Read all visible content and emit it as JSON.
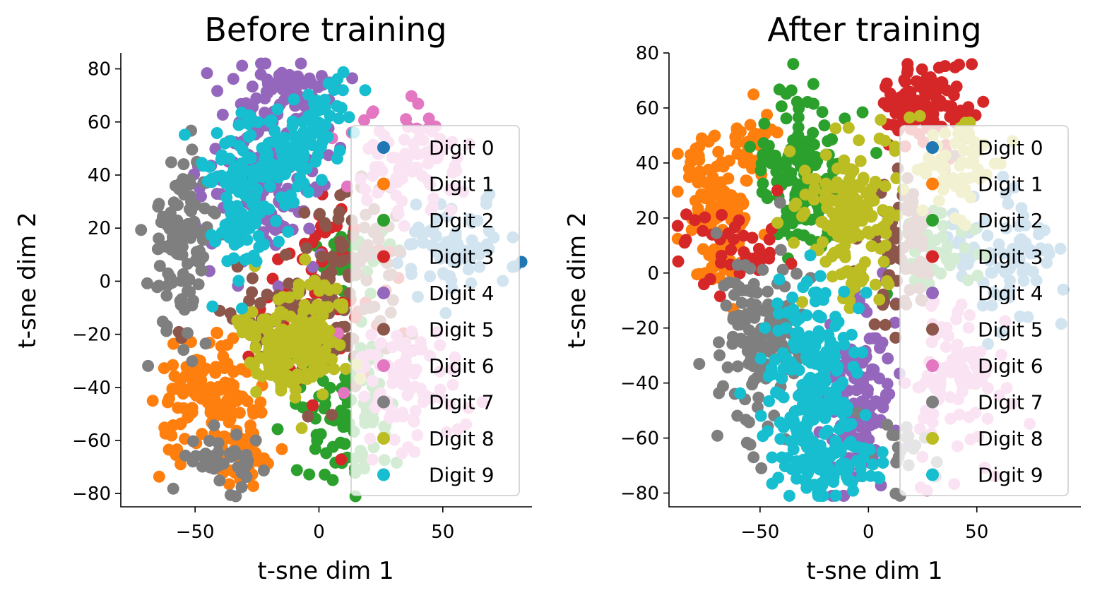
{
  "chart_data": [
    {
      "type": "scatter",
      "title": "Before training",
      "xlabel": "t-sne dim 1",
      "ylabel": "t-sne dim 2",
      "xlim": [
        -80,
        86
      ],
      "ylim": [
        -85,
        86
      ],
      "xticks": [
        {
          "v": -50,
          "label": "−50"
        },
        {
          "v": 0,
          "label": "0"
        },
        {
          "v": 50,
          "label": "50"
        }
      ],
      "yticks": [
        {
          "v": -80,
          "label": "−80"
        },
        {
          "v": -60,
          "label": "−60"
        },
        {
          "v": -40,
          "label": "−40"
        },
        {
          "v": -20,
          "label": "−20"
        },
        {
          "v": 0,
          "label": "0"
        },
        {
          "v": 20,
          "label": "20"
        },
        {
          "v": 40,
          "label": "40"
        },
        {
          "v": 60,
          "label": "60"
        },
        {
          "v": 80,
          "label": "80"
        }
      ],
      "legend_location": "right",
      "clusters": [
        {
          "series": 7,
          "cx": -55,
          "cy": 15,
          "sx": 7,
          "sy": 17,
          "n": 110
        },
        {
          "series": 7,
          "cx": -38,
          "cy": -68,
          "sx": 8,
          "sy": 5,
          "n": 40
        },
        {
          "series": 1,
          "cx": -45,
          "cy": -45,
          "sx": 10,
          "sy": 10,
          "n": 130
        },
        {
          "series": 1,
          "cx": -28,
          "cy": -65,
          "sx": 7,
          "sy": 6,
          "n": 40
        },
        {
          "series": 4,
          "cx": -22,
          "cy": 45,
          "sx": 12,
          "sy": 18,
          "n": 170
        },
        {
          "series": 4,
          "cx": -10,
          "cy": 72,
          "sx": 10,
          "sy": 5,
          "n": 40
        },
        {
          "series": 5,
          "cx": -5,
          "cy": -15,
          "sx": 20,
          "sy": 12,
          "n": 110
        },
        {
          "series": 5,
          "cx": 15,
          "cy": 20,
          "sx": 10,
          "sy": 12,
          "n": 50
        },
        {
          "series": 3,
          "cx": 5,
          "cy": 0,
          "sx": 15,
          "sy": 20,
          "n": 60
        },
        {
          "series": 2,
          "cx": 12,
          "cy": -50,
          "sx": 9,
          "sy": 13,
          "n": 100
        },
        {
          "series": 2,
          "cx": 15,
          "cy": 10,
          "sx": 7,
          "sy": 7,
          "n": 40
        },
        {
          "series": 6,
          "cx": 38,
          "cy": 45,
          "sx": 12,
          "sy": 10,
          "n": 90
        },
        {
          "series": 0,
          "cx": 55,
          "cy": 12,
          "sx": 13,
          "sy": 8,
          "n": 80
        },
        {
          "series": 6,
          "cx": 35,
          "cy": -40,
          "sx": 12,
          "sy": 12,
          "n": 90
        },
        {
          "series": 8,
          "cx": -10,
          "cy": -20,
          "sx": 11,
          "sy": 11,
          "n": 180
        },
        {
          "series": 9,
          "cx": -30,
          "cy": 30,
          "sx": 9,
          "sy": 15,
          "n": 110
        },
        {
          "series": 9,
          "cx": -12,
          "cy": 48,
          "sx": 10,
          "sy": 9,
          "n": 80
        },
        {
          "series": 9,
          "cx": 3,
          "cy": 62,
          "sx": 5,
          "sy": 7,
          "n": 30
        }
      ]
    },
    {
      "type": "scatter",
      "title": "After training",
      "xlabel": "t-sne dim 1",
      "ylabel": "t-sne dim 2",
      "xlim": [
        -92,
        98
      ],
      "ylim": [
        -85,
        80
      ],
      "xticks": [
        {
          "v": -50,
          "label": "−50"
        },
        {
          "v": 0,
          "label": "0"
        },
        {
          "v": 50,
          "label": "50"
        }
      ],
      "yticks": [
        {
          "v": -80,
          "label": "−80"
        },
        {
          "v": -60,
          "label": "−60"
        },
        {
          "v": -40,
          "label": "−40"
        },
        {
          "v": -20,
          "label": "−20"
        },
        {
          "v": 0,
          "label": "0"
        },
        {
          "v": 20,
          "label": "20"
        },
        {
          "v": 40,
          "label": "40"
        },
        {
          "v": 60,
          "label": "60"
        },
        {
          "v": 80,
          "label": "80"
        }
      ],
      "legend_location": "right",
      "clusters": [
        {
          "series": 1,
          "cx": -70,
          "cy": 25,
          "sx": 8,
          "sy": 15,
          "n": 130
        },
        {
          "series": 1,
          "cx": -55,
          "cy": 50,
          "sx": 6,
          "sy": 6,
          "n": 30
        },
        {
          "series": 3,
          "cx": -62,
          "cy": 10,
          "sx": 14,
          "sy": 8,
          "n": 40
        },
        {
          "series": 2,
          "cx": -30,
          "cy": 35,
          "sx": 10,
          "sy": 15,
          "n": 140
        },
        {
          "series": 7,
          "cx": -50,
          "cy": -25,
          "sx": 10,
          "sy": 16,
          "n": 140
        },
        {
          "series": 7,
          "cx": 15,
          "cy": -65,
          "sx": 8,
          "sy": 8,
          "n": 20
        },
        {
          "series": 8,
          "cx": -8,
          "cy": 20,
          "sx": 10,
          "sy": 14,
          "n": 170
        },
        {
          "series": 3,
          "cx": 25,
          "cy": 60,
          "sx": 10,
          "sy": 8,
          "n": 110
        },
        {
          "series": 5,
          "cx": 12,
          "cy": 10,
          "sx": 10,
          "sy": 15,
          "n": 80
        },
        {
          "series": 4,
          "cx": -5,
          "cy": -45,
          "sx": 10,
          "sy": 18,
          "n": 130
        },
        {
          "series": 0,
          "cx": 65,
          "cy": 5,
          "sx": 12,
          "sy": 10,
          "n": 80
        },
        {
          "series": 6,
          "cx": 40,
          "cy": -40,
          "sx": 12,
          "sy": 14,
          "n": 90
        },
        {
          "series": 8,
          "cx": 40,
          "cy": 40,
          "sx": 12,
          "sy": 10,
          "n": 60
        },
        {
          "series": 2,
          "cx": 30,
          "cy": 10,
          "sx": 10,
          "sy": 8,
          "n": 40
        },
        {
          "series": 9,
          "cx": -25,
          "cy": -45,
          "sx": 10,
          "sy": 20,
          "n": 240
        },
        {
          "series": 9,
          "cx": -20,
          "cy": -70,
          "sx": 14,
          "sy": 5,
          "n": 60
        }
      ]
    }
  ],
  "legend": {
    "entries": [
      "Digit 0",
      "Digit 1",
      "Digit 2",
      "Digit 3",
      "Digit 4",
      "Digit 5",
      "Digit 6",
      "Digit 7",
      "Digit 8",
      "Digit 9"
    ],
    "colors": [
      "#1f77b4",
      "#ff7f0e",
      "#2ca02c",
      "#d62728",
      "#9467bd",
      "#8c564b",
      "#e377c2",
      "#7f7f7f",
      "#bcbd22",
      "#17becf"
    ]
  }
}
